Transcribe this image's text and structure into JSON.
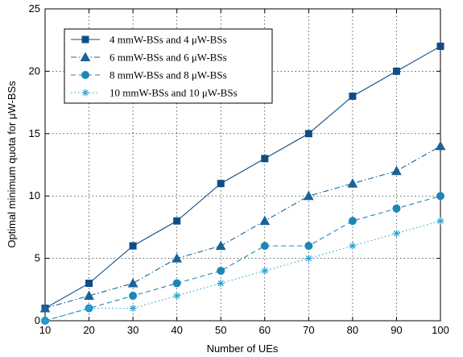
{
  "chart_data": {
    "type": "line",
    "xlabel": "Number of UEs",
    "ylabel": "Optimal minimum quota for μW-BSs",
    "x": [
      10,
      20,
      30,
      40,
      50,
      60,
      70,
      80,
      90,
      100
    ],
    "xlim": [
      10,
      100
    ],
    "ylim": [
      0,
      25
    ],
    "xticks": [
      10,
      20,
      30,
      40,
      50,
      60,
      70,
      80,
      90,
      100
    ],
    "yticks": [
      0,
      5,
      10,
      15,
      20,
      25
    ],
    "grid": true,
    "legend_position": "top-left",
    "series": [
      {
        "name": "4 mmW-BSs and 4 μW-BSs",
        "values": [
          1,
          3,
          6,
          8,
          11,
          13,
          15,
          18,
          20,
          22
        ],
        "color": "#0f4d86",
        "line_style": "solid",
        "marker": "square"
      },
      {
        "name": "6 mmW-BSs and 6 μW-BSs",
        "values": [
          1,
          2,
          3,
          5,
          6,
          8,
          10,
          11,
          12,
          14
        ],
        "color": "#1a6396",
        "line_style": "dashdot",
        "marker": "triangle"
      },
      {
        "name": "8 mmW-BSs and 8 μW-BSs",
        "values": [
          0,
          1,
          2,
          3,
          4,
          6,
          6,
          8,
          9,
          10
        ],
        "color": "#1c86b8",
        "line_style": "dashed",
        "marker": "circle"
      },
      {
        "name": "10 mmW-BSs and 10 μW-BSs",
        "values": [
          0,
          1,
          1,
          2,
          3,
          4,
          5,
          6,
          7,
          8
        ],
        "color": "#2aa3d4",
        "line_style": "dotted",
        "marker": "star"
      }
    ]
  }
}
